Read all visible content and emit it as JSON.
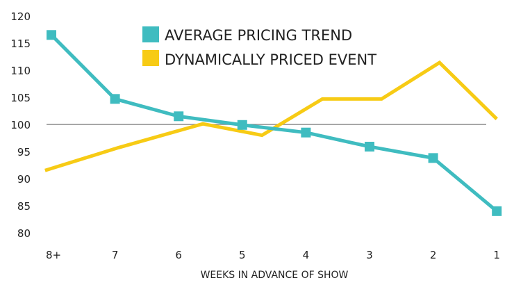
{
  "chart_data": {
    "type": "line",
    "title": "",
    "xlabel": "WEEKS IN ADVANCE OF SHOW",
    "ylabel": "",
    "categories": [
      "8+",
      "7",
      "6",
      "5",
      "4",
      "3",
      "2",
      "1"
    ],
    "yticks": [
      120,
      115,
      110,
      105,
      100,
      95,
      90,
      85,
      80
    ],
    "ylim": [
      80,
      120
    ],
    "reference_line": 100,
    "grid": false,
    "legend_position": "top-center",
    "series": [
      {
        "name": "AVERAGE PRICING TREND",
        "color": "#3fbcc0",
        "marker": "square",
        "x": [
          8,
          7,
          6,
          5,
          4,
          3,
          2,
          1
        ],
        "values": [
          116.5,
          104.7,
          101.5,
          99.9,
          98.5,
          95.9,
          93.8,
          84.0
        ]
      },
      {
        "name": "DYNAMICALLY PRICED EVENT",
        "color": "#f7cb15",
        "marker": "none",
        "x": [
          8.1,
          6.95,
          5.62,
          4.69,
          3.74,
          2.81,
          1.9,
          1.0
        ],
        "values": [
          91.5,
          95.7,
          100.1,
          98.0,
          104.7,
          104.7,
          111.4,
          101.0
        ]
      }
    ]
  }
}
